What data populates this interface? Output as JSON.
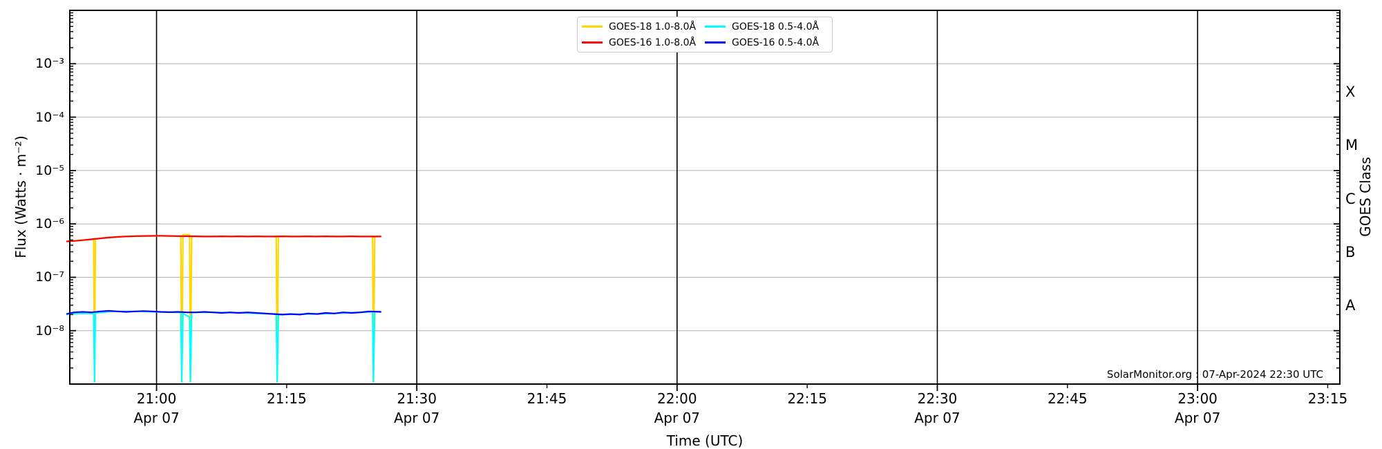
{
  "chart_data": {
    "type": "line",
    "title": "",
    "xlabel": "Time (UTC)",
    "ylabel": "Flux (Watts · m⁻²)",
    "ylabel_right": "GOES Class",
    "watermark": "SolarMonitor.org : 07-Apr-2024 22:30 UTC",
    "grid": {
      "h_color": "#b0b0b0",
      "v_color": "#000000"
    },
    "x_axis": {
      "unit": "minutes after 20:00 UTC on 2024-04-07",
      "range": [
        50.0,
        196.4
      ],
      "major_ticks": [
        {
          "t": 60,
          "label": "21:00",
          "sub": "Apr 07"
        },
        {
          "t": 90,
          "label": "21:30",
          "sub": "Apr 07"
        },
        {
          "t": 120,
          "label": "22:00",
          "sub": "Apr 07"
        },
        {
          "t": 150,
          "label": "22:30",
          "sub": "Apr 07"
        },
        {
          "t": 180,
          "label": "23:00",
          "sub": "Apr 07"
        }
      ],
      "minor_ticks": [
        {
          "t": 75,
          "label": "21:15"
        },
        {
          "t": 105,
          "label": "21:45"
        },
        {
          "t": 135,
          "label": "22:15"
        },
        {
          "t": 165,
          "label": "22:45"
        },
        {
          "t": 195,
          "label": "23:15"
        }
      ]
    },
    "y_axis": {
      "scale": "log",
      "range": [
        1e-09,
        0.01
      ],
      "ticks": [
        {
          "value": 0.001,
          "label": "10⁻³"
        },
        {
          "value": 0.0001,
          "label": "10⁻⁴"
        },
        {
          "value": 1e-05,
          "label": "10⁻⁵"
        },
        {
          "value": 1e-06,
          "label": "10⁻⁶"
        },
        {
          "value": 1e-07,
          "label": "10⁻⁷"
        },
        {
          "value": 1e-08,
          "label": "10⁻⁸"
        }
      ]
    },
    "right_axis_classes": [
      {
        "label": "X",
        "log_center": -3.5
      },
      {
        "label": "M",
        "log_center": -4.5
      },
      {
        "label": "C",
        "log_center": -5.5
      },
      {
        "label": "B",
        "log_center": -6.5
      },
      {
        "label": "A",
        "log_center": -7.5
      }
    ],
    "legend_position": "upper center, two columns",
    "series": [
      {
        "name": "GOES-18 1.0-8.0Å",
        "color": "#FFD700",
        "points": [
          [
            49.6,
            4.68e-07
          ],
          [
            51,
            4.9e-07
          ],
          [
            52.2,
            5.08e-07
          ],
          [
            52.75,
            5.15e-07
          ],
          [
            52.85,
            1.1e-09
          ],
          [
            52.95,
            5.2e-07
          ],
          [
            54,
            5.5e-07
          ],
          [
            56,
            5.78e-07
          ],
          [
            58,
            5.92e-07
          ],
          [
            60,
            5.98e-07
          ],
          [
            61.5,
            5.95e-07
          ],
          [
            62.8,
            5.9e-07
          ],
          [
            62.9,
            1.1e-09
          ],
          [
            63.05,
            6.3e-07
          ],
          [
            63.8,
            6.3e-07
          ],
          [
            63.9,
            1.1e-09
          ],
          [
            64.05,
            5.85e-07
          ],
          [
            66,
            5.8e-07
          ],
          [
            70,
            5.82e-07
          ],
          [
            73.8,
            5.8e-07
          ],
          [
            73.9,
            1.1e-09
          ],
          [
            74.05,
            5.8e-07
          ],
          [
            78,
            5.8e-07
          ],
          [
            82,
            5.82e-07
          ],
          [
            84.9,
            5.8e-07
          ],
          [
            85.0,
            1.1e-09
          ],
          [
            85.15,
            5.8e-07
          ],
          [
            85.9,
            5.8e-07
          ]
        ]
      },
      {
        "name": "GOES-16 1.0-8.0Å",
        "color": "#FF0000",
        "points": [
          [
            49.6,
            4.7e-07
          ],
          [
            50.5,
            4.8e-07
          ],
          [
            51.5,
            4.95e-07
          ],
          [
            52.5,
            5.15e-07
          ],
          [
            53.5,
            5.35e-07
          ],
          [
            54.5,
            5.55e-07
          ],
          [
            55.5,
            5.7e-07
          ],
          [
            56.5,
            5.82e-07
          ],
          [
            57.5,
            5.9e-07
          ],
          [
            58.5,
            5.95e-07
          ],
          [
            59.5,
            5.97e-07
          ],
          [
            60.5,
            6e-07
          ],
          [
            61.5,
            5.95e-07
          ],
          [
            62.5,
            5.9e-07
          ],
          [
            63.5,
            5.87e-07
          ],
          [
            64.5,
            5.85e-07
          ],
          [
            65.5,
            5.8e-07
          ],
          [
            66.5,
            5.8e-07
          ],
          [
            67.5,
            5.85e-07
          ],
          [
            68.5,
            5.8e-07
          ],
          [
            69.5,
            5.85e-07
          ],
          [
            70.5,
            5.8e-07
          ],
          [
            71.5,
            5.85e-07
          ],
          [
            72.5,
            5.8e-07
          ],
          [
            73.5,
            5.8e-07
          ],
          [
            74.5,
            5.85e-07
          ],
          [
            75.5,
            5.8e-07
          ],
          [
            76.5,
            5.8e-07
          ],
          [
            77.5,
            5.85e-07
          ],
          [
            78.5,
            5.8e-07
          ],
          [
            79.5,
            5.85e-07
          ],
          [
            80.5,
            5.8e-07
          ],
          [
            81.5,
            5.8e-07
          ],
          [
            82.5,
            5.85e-07
          ],
          [
            83.5,
            5.8e-07
          ],
          [
            84.5,
            5.8e-07
          ],
          [
            85.9,
            5.8e-07
          ]
        ]
      },
      {
        "name": "GOES-18 0.5-4.0Å",
        "color": "#00FFFF",
        "points": [
          [
            49.6,
            2e-08
          ],
          [
            51,
            2.1e-08
          ],
          [
            52.75,
            2.1e-08
          ],
          [
            52.85,
            1.1e-09
          ],
          [
            52.95,
            2.15e-08
          ],
          [
            55,
            2.3e-08
          ],
          [
            58,
            2.3e-08
          ],
          [
            60,
            2.25e-08
          ],
          [
            62,
            2.2e-08
          ],
          [
            62.8,
            2.2e-08
          ],
          [
            62.9,
            1.1e-09
          ],
          [
            63.05,
            2.1e-08
          ],
          [
            63.8,
            1.8e-08
          ],
          [
            63.9,
            1.1e-09
          ],
          [
            64.05,
            2.2e-08
          ],
          [
            66,
            2.2e-08
          ],
          [
            70,
            2.15e-08
          ],
          [
            73.8,
            2.05e-08
          ],
          [
            73.9,
            1.1e-09
          ],
          [
            74.05,
            2e-08
          ],
          [
            78,
            2.05e-08
          ],
          [
            82,
            2.15e-08
          ],
          [
            84.9,
            2.25e-08
          ],
          [
            85.0,
            1.1e-09
          ],
          [
            85.15,
            2.3e-08
          ],
          [
            85.9,
            2.25e-08
          ]
        ]
      },
      {
        "name": "GOES-16 0.5-4.0Å",
        "color": "#0000FF",
        "points": [
          [
            49.6,
            2.05e-08
          ],
          [
            50.5,
            2.2e-08
          ],
          [
            51.5,
            2.25e-08
          ],
          [
            52.5,
            2.2e-08
          ],
          [
            53.5,
            2.3e-08
          ],
          [
            54.5,
            2.35e-08
          ],
          [
            55.5,
            2.3e-08
          ],
          [
            56.5,
            2.25e-08
          ],
          [
            57.5,
            2.3e-08
          ],
          [
            58.5,
            2.33e-08
          ],
          [
            59.5,
            2.3e-08
          ],
          [
            60.5,
            2.25e-08
          ],
          [
            61.5,
            2.22e-08
          ],
          [
            62.5,
            2.25e-08
          ],
          [
            63.5,
            2.2e-08
          ],
          [
            64.5,
            2.2e-08
          ],
          [
            65.5,
            2.25e-08
          ],
          [
            66.5,
            2.2e-08
          ],
          [
            67.5,
            2.15e-08
          ],
          [
            68.5,
            2.2e-08
          ],
          [
            69.5,
            2.15e-08
          ],
          [
            70.5,
            2.2e-08
          ],
          [
            71.5,
            2.15e-08
          ],
          [
            72.5,
            2.1e-08
          ],
          [
            73.5,
            2.05e-08
          ],
          [
            74.5,
            2e-08
          ],
          [
            75.5,
            2.05e-08
          ],
          [
            76.5,
            2e-08
          ],
          [
            77.5,
            2.1e-08
          ],
          [
            78.5,
            2.05e-08
          ],
          [
            79.5,
            2.15e-08
          ],
          [
            80.5,
            2.1e-08
          ],
          [
            81.5,
            2.2e-08
          ],
          [
            82.5,
            2.15e-08
          ],
          [
            83.5,
            2.2e-08
          ],
          [
            84.5,
            2.3e-08
          ],
          [
            85.9,
            2.25e-08
          ]
        ]
      }
    ]
  }
}
